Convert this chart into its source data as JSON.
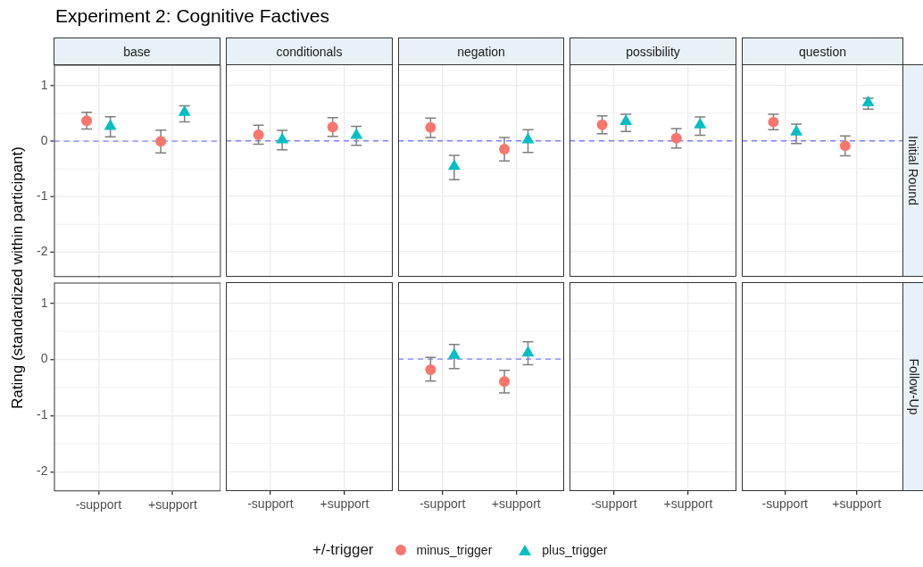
{
  "chart_data": [
    {
      "type": "scatter",
      "title": "base",
      "annotations": [
        "Experiment 2: Cognitive Factives"
      ],
      "ylabel": "Rating (standardized within participant)",
      "legend": "bottom",
      "legend_title": "+/-trigger",
      "categories": [
        "-support",
        "+support"
      ],
      "ylim": [
        -2.45,
        1.38
      ],
      "yticks": [
        -2,
        -1,
        0,
        1
      ],
      "grid": true,
      "tick_labels": "y",
      "ref_lines": [
        {
          "axis": "y",
          "value": 0,
          "color": "#7f7fff",
          "line_style": "dashed"
        }
      ],
      "series": [
        {
          "name": "minus_trigger",
          "color": "#f8766d",
          "marker": "circle",
          "values": [
            0.37,
            0.0
          ],
          "errors": [
            [
              0.22,
              0.52
            ],
            [
              -0.21,
              0.2
            ]
          ]
        },
        {
          "name": "plus_trigger",
          "color": "#00bfc4",
          "marker": "triangle",
          "values": [
            0.27,
            0.52
          ],
          "errors": [
            [
              0.08,
              0.44
            ],
            [
              0.35,
              0.64
            ]
          ]
        }
      ]
    },
    {
      "type": "scatter",
      "title": "conditionals",
      "categories": [
        "-support",
        "+support"
      ],
      "ylim": [
        -2.45,
        1.38
      ],
      "yticks": [
        -2,
        -1,
        0,
        1
      ],
      "grid": true,
      "tick_labels": false,
      "ref_lines": [
        {
          "axis": "y",
          "value": 0,
          "color": "#7f7fff",
          "line_style": "dashed"
        }
      ],
      "series": [
        {
          "name": "minus_trigger",
          "color": "#f8766d",
          "marker": "circle",
          "values": [
            0.11,
            0.25
          ],
          "errors": [
            [
              -0.06,
              0.28
            ],
            [
              0.08,
              0.42
            ]
          ]
        },
        {
          "name": "plus_trigger",
          "color": "#00bfc4",
          "marker": "triangle",
          "values": [
            0.02,
            0.1
          ],
          "errors": [
            [
              -0.16,
              0.19
            ],
            [
              -0.08,
              0.26
            ]
          ]
        }
      ]
    },
    {
      "type": "scatter",
      "title": "negation",
      "categories": [
        "-support",
        "+support"
      ],
      "ylim": [
        -2.45,
        1.38
      ],
      "yticks": [
        -2,
        -1,
        0,
        1
      ],
      "grid": true,
      "tick_labels": false,
      "ref_lines": [
        {
          "axis": "y",
          "value": 0,
          "color": "#7f7fff",
          "line_style": "dashed"
        }
      ],
      "series": [
        {
          "name": "minus_trigger",
          "color": "#f8766d",
          "marker": "circle",
          "values": [
            0.24,
            -0.15
          ],
          "errors": [
            [
              0.06,
              0.41
            ],
            [
              -0.36,
              0.06
            ]
          ]
        },
        {
          "name": "plus_trigger",
          "color": "#00bfc4",
          "marker": "triangle",
          "values": [
            -0.46,
            0.02
          ],
          "errors": [
            [
              -0.7,
              -0.26
            ],
            [
              -0.21,
              0.2
            ]
          ]
        }
      ]
    },
    {
      "type": "scatter",
      "title": "possibility",
      "categories": [
        "-support",
        "+support"
      ],
      "ylim": [
        -2.45,
        1.38
      ],
      "yticks": [
        -2,
        -1,
        0,
        1
      ],
      "grid": true,
      "tick_labels": false,
      "ref_lines": [
        {
          "axis": "y",
          "value": 0,
          "color": "#7f7fff",
          "line_style": "dashed"
        }
      ],
      "series": [
        {
          "name": "minus_trigger",
          "color": "#f8766d",
          "marker": "circle",
          "values": [
            0.29,
            0.05
          ],
          "errors": [
            [
              0.13,
              0.45
            ],
            [
              -0.13,
              0.22
            ]
          ]
        },
        {
          "name": "plus_trigger",
          "color": "#00bfc4",
          "marker": "triangle",
          "values": [
            0.35,
            0.29
          ],
          "errors": [
            [
              0.17,
              0.48
            ],
            [
              0.1,
              0.43
            ]
          ]
        }
      ]
    },
    {
      "type": "scatter",
      "title": "question",
      "y2label": "Initial Round",
      "categories": [
        "-support",
        "+support"
      ],
      "ylim": [
        -2.45,
        1.38
      ],
      "yticks": [
        -2,
        -1,
        0,
        1
      ],
      "grid": true,
      "tick_labels": false,
      "ref_lines": [
        {
          "axis": "y",
          "value": 0,
          "color": "#7f7fff",
          "line_style": "dashed"
        }
      ],
      "series": [
        {
          "name": "minus_trigger",
          "color": "#f8766d",
          "marker": "circle",
          "values": [
            0.34,
            -0.09
          ],
          "errors": [
            [
              0.2,
              0.48
            ],
            [
              -0.27,
              0.09
            ]
          ]
        },
        {
          "name": "plus_trigger",
          "color": "#00bfc4",
          "marker": "triangle",
          "values": [
            0.16,
            0.69
          ],
          "errors": [
            [
              -0.05,
              0.3
            ],
            [
              0.57,
              0.77
            ]
          ]
        }
      ]
    },
    {
      "type": "scatter",
      "categories": [
        "-support",
        "+support"
      ],
      "ylim": [
        -2.35,
        1.37
      ],
      "yticks": [
        -2,
        -1,
        0,
        1
      ],
      "grid": true
    },
    {
      "type": "scatter",
      "categories": [
        "-support",
        "+support"
      ],
      "ylim": [
        -2.35,
        1.37
      ],
      "yticks": [
        -2,
        -1,
        0,
        1
      ],
      "grid": true,
      "tick_labels": "x"
    },
    {
      "type": "scatter",
      "categories": [
        "-support",
        "+support"
      ],
      "ylim": [
        -2.35,
        1.37
      ],
      "yticks": [
        -2,
        -1,
        0,
        1
      ],
      "grid": true,
      "tick_labels": "x",
      "ref_lines": [
        {
          "axis": "y",
          "value": 0,
          "color": "#7f7fff",
          "line_style": "dashed"
        }
      ],
      "series": [
        {
          "name": "minus_trigger",
          "color": "#f8766d",
          "marker": "circle",
          "values": [
            -0.19,
            -0.4
          ],
          "errors": [
            [
              -0.39,
              0.03
            ],
            [
              -0.6,
              -0.2
            ]
          ]
        },
        {
          "name": "plus_trigger",
          "color": "#00bfc4",
          "marker": "triangle",
          "values": [
            0.07,
            0.11
          ],
          "errors": [
            [
              -0.17,
              0.26
            ],
            [
              -0.1,
              0.31
            ]
          ]
        }
      ]
    },
    {
      "type": "scatter",
      "categories": [
        "-support",
        "+support"
      ],
      "ylim": [
        -2.35,
        1.37
      ],
      "yticks": [
        -2,
        -1,
        0,
        1
      ],
      "grid": true,
      "tick_labels": "x"
    },
    {
      "type": "scatter",
      "y2label": "Follow-Up",
      "categories": [
        "-support",
        "+support"
      ],
      "ylim": [
        -2.35,
        1.37
      ],
      "yticks": [
        -2,
        -1,
        0,
        1
      ],
      "grid": true,
      "tick_labels": "x"
    }
  ]
}
